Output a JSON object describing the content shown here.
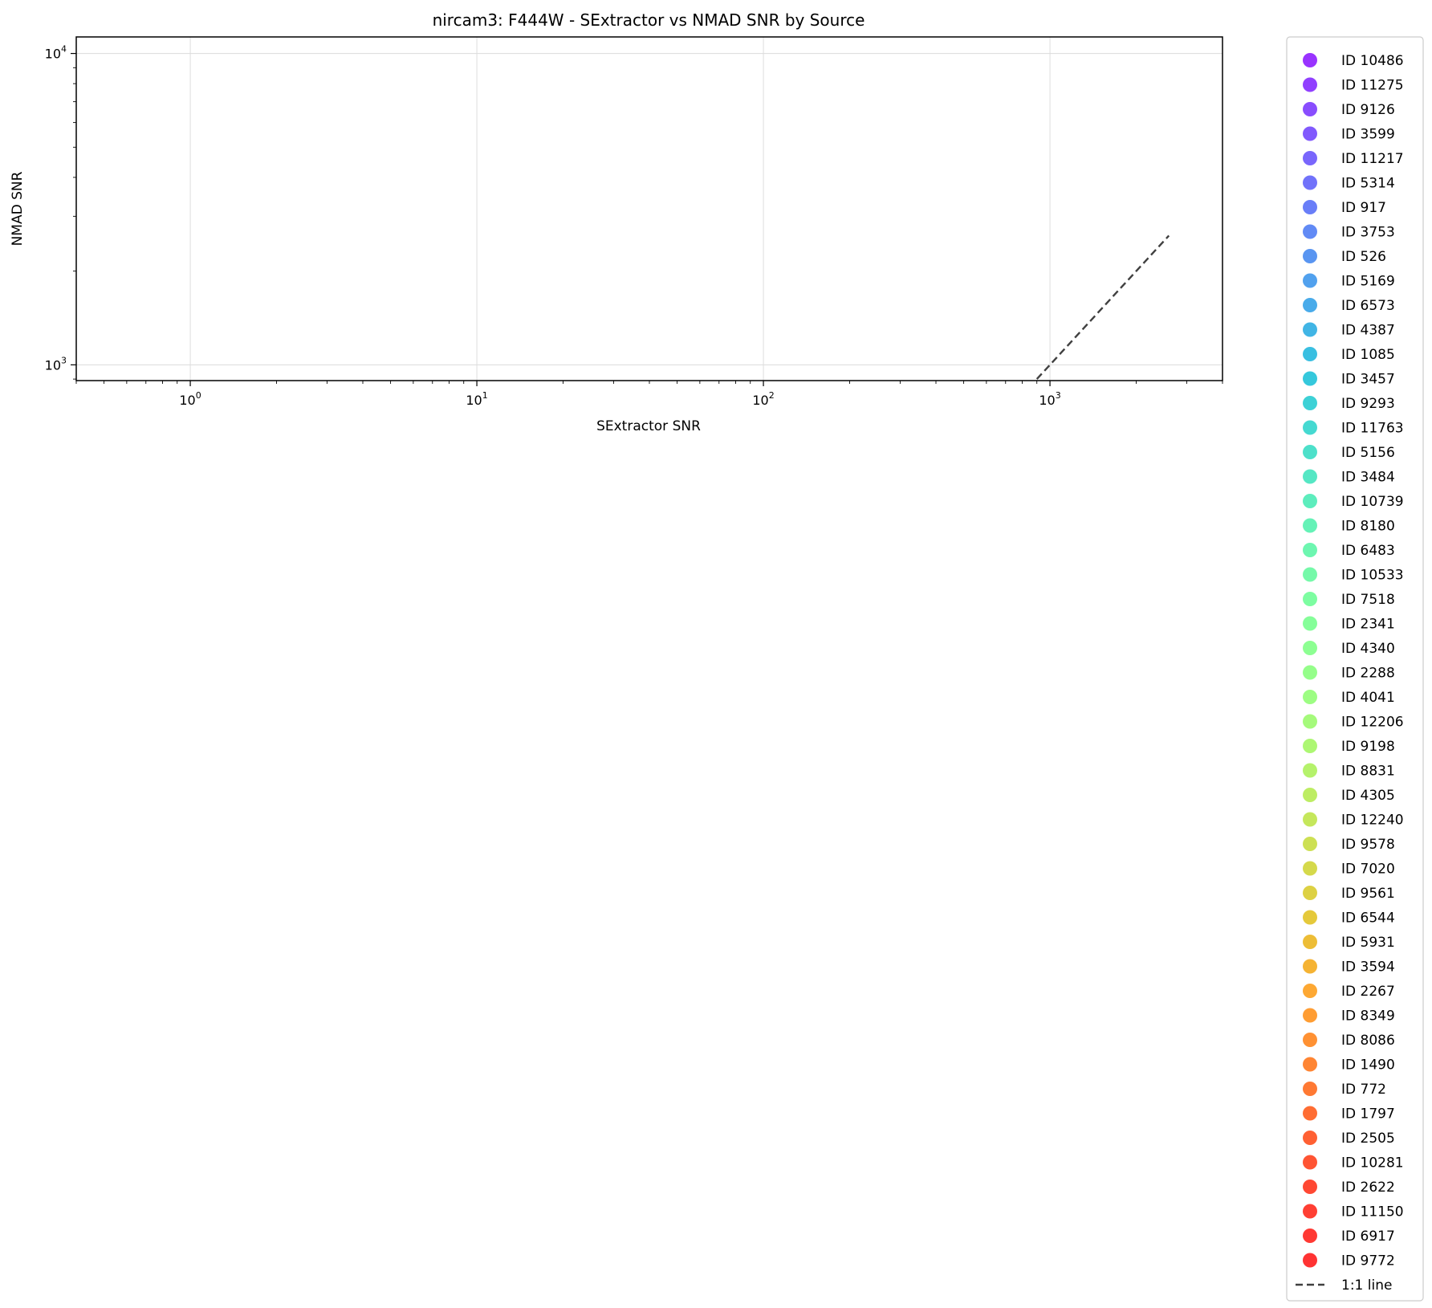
{
  "chart_data": {
    "type": "scatter",
    "title": "nircam3: F444W - SExtractor vs NMAD SNR by Source",
    "xlabel": "SExtractor SNR",
    "ylabel": "NMAD SNR",
    "xscale": "log",
    "yscale": "log",
    "xlim": [
      0.4,
      4000
    ],
    "ylim": [
      890,
      11300
    ],
    "x_ticks": [
      {
        "value": 1,
        "base": "10",
        "exp": "0"
      },
      {
        "value": 10,
        "base": "10",
        "exp": "1"
      },
      {
        "value": 100,
        "base": "10",
        "exp": "2"
      },
      {
        "value": 1000,
        "base": "10",
        "exp": "3"
      }
    ],
    "y_ticks": [
      {
        "value": 1000,
        "base": "10",
        "exp": "3"
      },
      {
        "value": 10000,
        "base": "10",
        "exp": "4"
      }
    ],
    "grid": true,
    "legend_position": "outside-right",
    "series": [
      {
        "name": "ID 10486",
        "color": "#8000ff",
        "points": []
      },
      {
        "name": "ID 11275",
        "color": "#7610ff",
        "points": []
      },
      {
        "name": "ID 9126",
        "color": "#6c20fe",
        "points": []
      },
      {
        "name": "ID 3599",
        "color": "#6230fd",
        "points": []
      },
      {
        "name": "ID 11217",
        "color": "#5840fb",
        "points": []
      },
      {
        "name": "ID 5314",
        "color": "#4e4ff9",
        "points": []
      },
      {
        "name": "ID 917",
        "color": "#445ef6",
        "points": []
      },
      {
        "name": "ID 3753",
        "color": "#3a6df2",
        "points": []
      },
      {
        "name": "ID 526",
        "color": "#307bee",
        "points": []
      },
      {
        "name": "ID 5169",
        "color": "#2689ea",
        "points": []
      },
      {
        "name": "ID 6573",
        "color": "#1c96e5",
        "points": []
      },
      {
        "name": "ID 4387",
        "color": "#12a3df",
        "points": []
      },
      {
        "name": "ID 1085",
        "color": "#08afd9",
        "points": []
      },
      {
        "name": "ID 3457",
        "color": "#02bad3",
        "points": []
      },
      {
        "name": "ID 9293",
        "color": "#0cc5cc",
        "points": []
      },
      {
        "name": "ID 11763",
        "color": "#16cfc5",
        "points": []
      },
      {
        "name": "ID 5156",
        "color": "#20d8bd",
        "points": []
      },
      {
        "name": "ID 3484",
        "color": "#2ae1b5",
        "points": []
      },
      {
        "name": "ID 10739",
        "color": "#34e8ad",
        "points": []
      },
      {
        "name": "ID 8180",
        "color": "#3eefa5",
        "points": []
      },
      {
        "name": "ID 6483",
        "color": "#48f49c",
        "points": []
      },
      {
        "name": "ID 10533",
        "color": "#52f893",
        "points": []
      },
      {
        "name": "ID 7518",
        "color": "#5cfc8a",
        "points": []
      },
      {
        "name": "ID 2341",
        "color": "#66fe80",
        "points": []
      },
      {
        "name": "ID 4340",
        "color": "#70ff77",
        "points": []
      },
      {
        "name": "ID 2288",
        "color": "#7afe6d",
        "points": []
      },
      {
        "name": "ID 4041",
        "color": "#84fc64",
        "points": []
      },
      {
        "name": "ID 12206",
        "color": "#8ef95a",
        "points": []
      },
      {
        "name": "ID 9198",
        "color": "#98f550",
        "points": []
      },
      {
        "name": "ID 8831",
        "color": "#a2ef46",
        "points": []
      },
      {
        "name": "ID 4305",
        "color": "#ace83c",
        "points": []
      },
      {
        "name": "ID 12240",
        "color": "#b6e132",
        "points": []
      },
      {
        "name": "ID 9578",
        "color": "#c0d828",
        "points": []
      },
      {
        "name": "ID 7020",
        "color": "#cacf1e",
        "points": []
      },
      {
        "name": "ID 9561",
        "color": "#d4c514",
        "points": []
      },
      {
        "name": "ID 6544",
        "color": "#debb0a",
        "points": []
      },
      {
        "name": "ID 5931",
        "color": "#e8ad04",
        "points": []
      },
      {
        "name": "ID 3594",
        "color": "#f2a000",
        "points": []
      },
      {
        "name": "ID 2267",
        "color": "#fc9200",
        "points": []
      },
      {
        "name": "ID 8349",
        "color": "#ff8400",
        "points": []
      },
      {
        "name": "ID 8086",
        "color": "#ff7500",
        "points": []
      },
      {
        "name": "ID 1490",
        "color": "#ff6600",
        "points": []
      },
      {
        "name": "ID 772",
        "color": "#ff5700",
        "points": []
      },
      {
        "name": "ID 1797",
        "color": "#ff4800",
        "points": []
      },
      {
        "name": "ID 2505",
        "color": "#ff3800",
        "points": []
      },
      {
        "name": "ID 10281",
        "color": "#ff2900",
        "points": []
      },
      {
        "name": "ID 2622",
        "color": "#ff1a00",
        "points": []
      },
      {
        "name": "ID 11150",
        "color": "#ff0f00",
        "points": []
      },
      {
        "name": "ID 6917",
        "color": "#ff0800",
        "points": []
      },
      {
        "name": "ID 9772",
        "color": "#ff0000",
        "points": []
      }
    ],
    "reference_line": {
      "name": "1:1 line",
      "color": "#404040",
      "style": "dashed",
      "x": [
        900,
        2600
      ],
      "y": [
        900,
        2600
      ]
    }
  }
}
